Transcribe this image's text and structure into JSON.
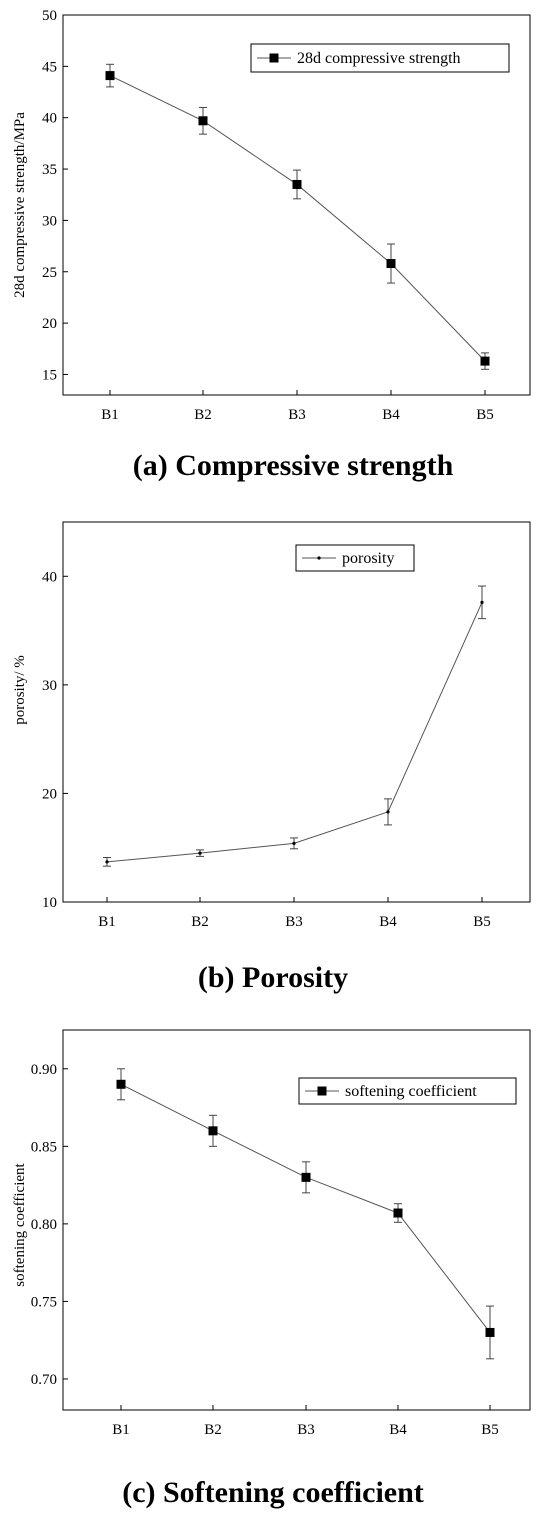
{
  "chart_data": [
    {
      "type": "line",
      "caption": "(a) Compressive strength",
      "categories": [
        "B1",
        "B2",
        "B3",
        "B4",
        "B5"
      ],
      "series": [
        {
          "name": "28d compressive strength",
          "values": [
            44.1,
            39.7,
            33.5,
            25.8,
            16.3
          ],
          "errors": [
            1.1,
            1.3,
            1.4,
            1.9,
            0.8
          ],
          "marker": "square"
        }
      ],
      "xlabel": "",
      "ylabel": "28d compressive strength/MPa",
      "ylim": [
        13,
        50
      ],
      "yticks": [
        15,
        20,
        25,
        30,
        35,
        40,
        45,
        50
      ],
      "grid": false,
      "legend": "top-right"
    },
    {
      "type": "line",
      "caption": "(b) Porosity",
      "categories": [
        "B1",
        "B2",
        "B3",
        "B4",
        "B5"
      ],
      "series": [
        {
          "name": "porosity",
          "values": [
            13.7,
            14.5,
            15.4,
            18.3,
            37.6
          ],
          "errors": [
            0.4,
            0.3,
            0.5,
            1.2,
            1.5
          ],
          "marker": "dot"
        }
      ],
      "xlabel": "",
      "ylabel": "porosity/ %",
      "ylim": [
        10,
        45
      ],
      "yticks": [
        10,
        20,
        30,
        40
      ],
      "grid": false,
      "legend": "top-right"
    },
    {
      "type": "line",
      "caption": "(c) Softening coefficient",
      "categories": [
        "B1",
        "B2",
        "B3",
        "B4",
        "B5"
      ],
      "series": [
        {
          "name": "softening coefficient",
          "values": [
            0.89,
            0.86,
            0.83,
            0.807,
            0.73
          ],
          "errors": [
            0.01,
            0.01,
            0.01,
            0.006,
            0.017
          ],
          "marker": "square"
        }
      ],
      "xlabel": "",
      "ylabel": "softening coefficient",
      "ylim": [
        0.68,
        0.925
      ],
      "yticks": [
        0.7,
        0.75,
        0.8,
        0.85,
        0.9
      ],
      "ytick_decimals": 2,
      "grid": false,
      "legend": "top-right"
    }
  ]
}
